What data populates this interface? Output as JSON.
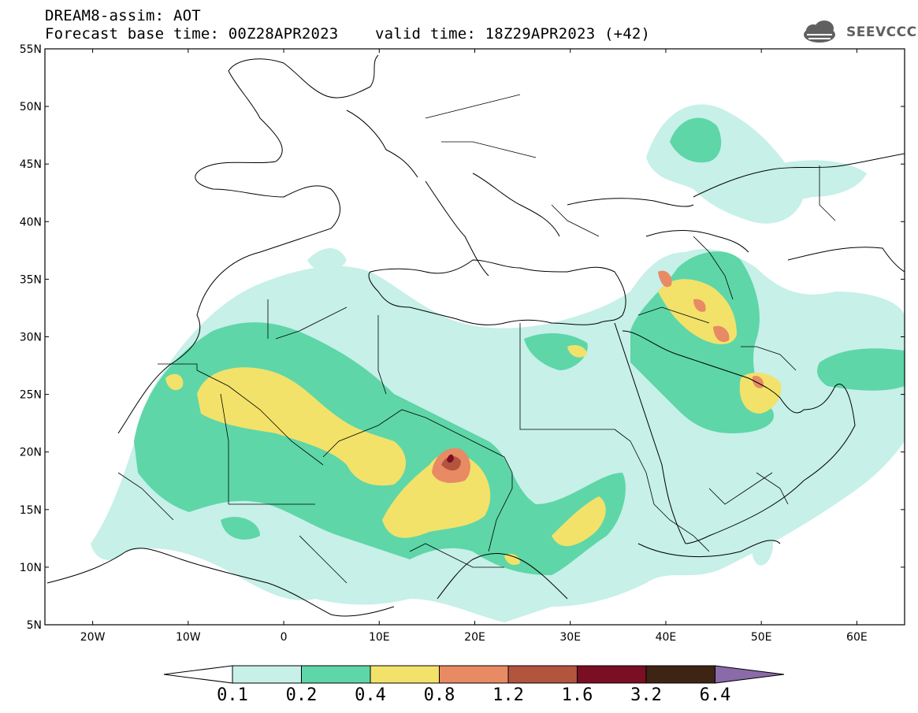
{
  "header": {
    "title_line1": "DREAM8-assim: AOT",
    "title_line2": "Forecast base time: 00Z28APR2023    valid time: 18Z29APR2023 (+42)"
  },
  "logo": {
    "text": "SEEVCCC",
    "icon": "cloud-icon"
  },
  "map": {
    "type": "contour-map",
    "lon_range": [
      -25,
      65
    ],
    "lat_range": [
      5,
      55
    ],
    "lat_labels": [
      "55N",
      "50N",
      "45N",
      "40N",
      "35N",
      "30N",
      "25N",
      "20N",
      "15N",
      "10N",
      "5N"
    ],
    "lon_labels": [
      "20W",
      "10W",
      "0",
      "10E",
      "20E",
      "30E",
      "40E",
      "50E",
      "60E"
    ]
  },
  "colorbar": {
    "levels": [
      "0.1",
      "0.2",
      "0.4",
      "0.8",
      "1.2",
      "1.6",
      "3.2",
      "6.4"
    ],
    "colors": [
      "#ffffff",
      "#c6f0e8",
      "#5ed6a8",
      "#f2e26a",
      "#e88a64",
      "#b2543e",
      "#7a0e22",
      "#3e2414",
      "#8a6aa8"
    ]
  }
}
